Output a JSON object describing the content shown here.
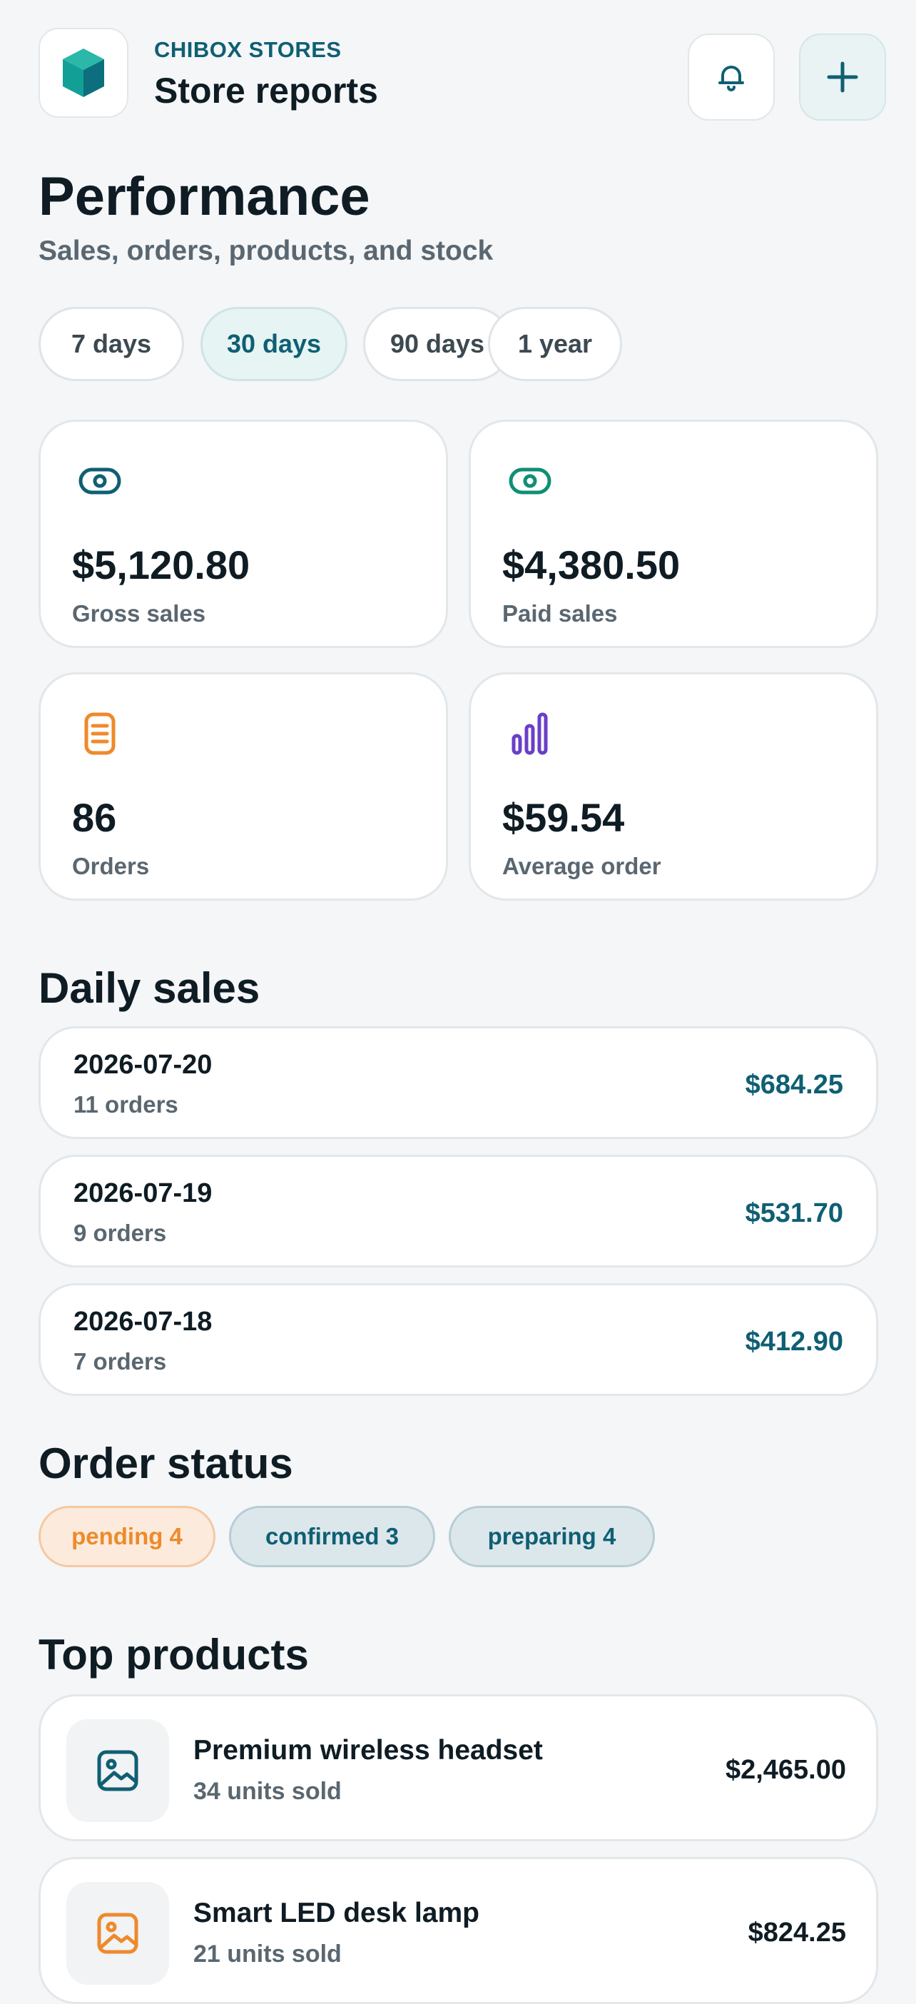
{
  "header": {
    "brand": "CHIBOX STORES",
    "title": "Store reports",
    "logo_icon": "cube-icon",
    "bell_icon": "bell-icon",
    "add_icon": "plus-icon"
  },
  "performance": {
    "title": "Performance",
    "subtitle": "Sales, orders, products, and stock"
  },
  "ranges": [
    {
      "label": "7 days",
      "active": false
    },
    {
      "label": "30 days",
      "active": true
    },
    {
      "label": "90 days",
      "active": false
    },
    {
      "label": "1 year",
      "active": false
    }
  ],
  "stats": [
    {
      "value": "$5,120.80",
      "label": "Gross sales",
      "icon": "eye-icon",
      "color": "#0f5f73"
    },
    {
      "value": "$4,380.50",
      "label": "Paid sales",
      "icon": "eye-icon",
      "color": "#0f8f74"
    },
    {
      "value": "86",
      "label": "Orders",
      "icon": "receipt-icon",
      "color": "#ee8a2b"
    },
    {
      "value": "$59.54",
      "label": "Average order",
      "icon": "bar-chart-icon",
      "color": "#6a3fc7"
    }
  ],
  "daily_sales": {
    "title": "Daily sales",
    "rows": [
      {
        "date": "2026-07-20",
        "orders": "11 orders",
        "amount": "$684.25"
      },
      {
        "date": "2026-07-19",
        "orders": "9 orders",
        "amount": "$531.70"
      },
      {
        "date": "2026-07-18",
        "orders": "7 orders",
        "amount": "$412.90"
      }
    ]
  },
  "order_status": {
    "title": "Order status",
    "badges": [
      {
        "label": "pending 4",
        "color": "#ee8a2b"
      },
      {
        "label": "confirmed 3",
        "color": "#0f5f73"
      },
      {
        "label": "preparing 4",
        "color": "#0f5f73"
      }
    ]
  },
  "top_products": {
    "title": "Top products",
    "items": [
      {
        "name": "Premium wireless headset",
        "units": "34 units sold",
        "price": "$2,465.00",
        "icon": "image-icon",
        "color": "#0f5f73"
      },
      {
        "name": "Smart LED desk lamp",
        "units": "21 units sold",
        "price": "$824.25",
        "icon": "image-icon",
        "color": "#ee8a2b"
      }
    ]
  }
}
